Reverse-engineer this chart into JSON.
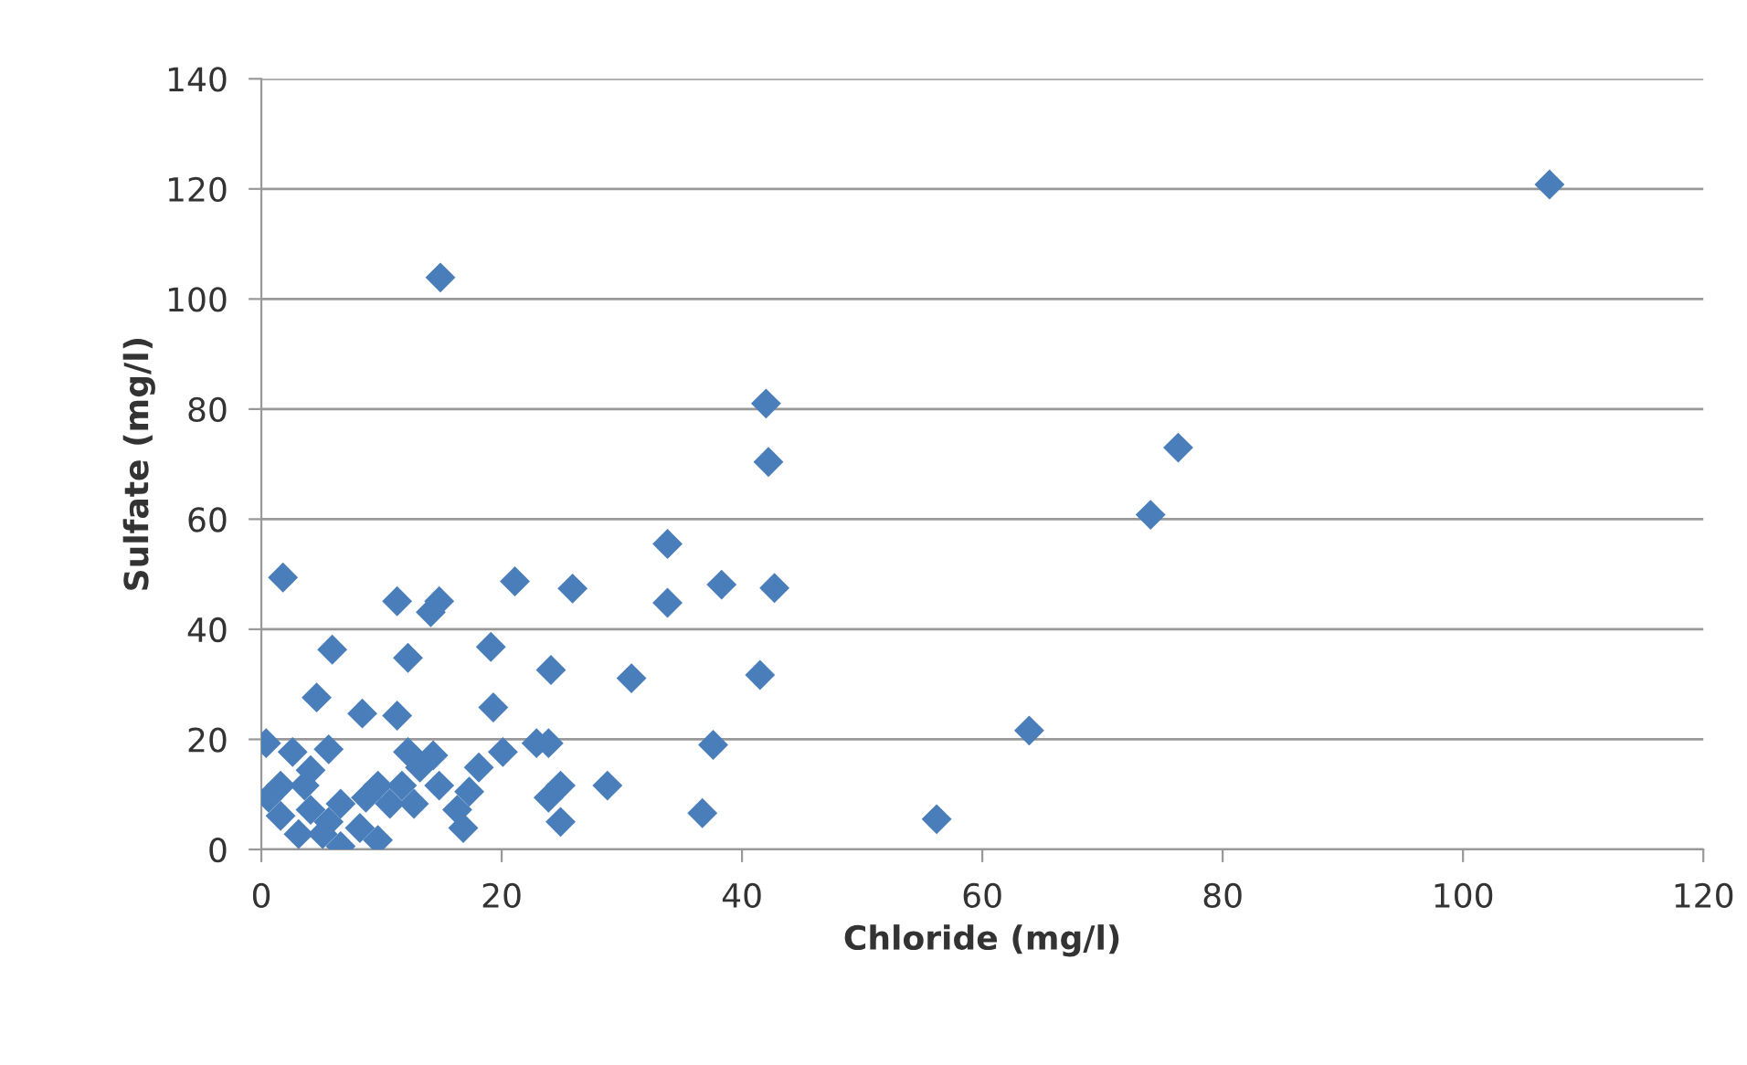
{
  "chart_data": {
    "type": "scatter",
    "xlabel": "Chloride (mg/l)",
    "ylabel": "Sulfate (mg/l)",
    "xlim": [
      0,
      120
    ],
    "ylim": [
      0,
      140
    ],
    "xticks": [
      0,
      20,
      40,
      60,
      80,
      100,
      120
    ],
    "yticks": [
      0,
      20,
      40,
      60,
      80,
      100,
      120,
      140
    ],
    "grid": "y",
    "marker": "diamond",
    "legend": false,
    "series": [
      {
        "color": "#4a7ebb",
        "x": [
          107.2,
          14.9,
          42.0,
          42.2,
          76.3,
          74.0,
          33.8,
          25.9,
          33.8,
          38.3,
          42.7,
          24.1,
          30.8,
          41.5,
          23.9,
          37.6,
          63.9,
          24.9,
          28.8,
          24.9,
          36.7,
          56.2,
          1.8,
          11.3,
          14.8,
          14.1,
          21.1,
          5.9,
          12.2,
          19.1,
          4.6,
          8.4,
          11.3,
          19.3,
          22.9,
          0.4,
          2.6,
          5.6,
          12.2,
          14.3,
          20.1,
          18.1,
          13.2,
          4.1,
          1.6,
          0.6,
          3.6,
          9.7,
          11.7,
          14.8,
          17.3,
          23.9,
          1.6,
          4.1,
          6.6,
          8.7,
          10.7,
          12.7,
          3.1,
          5.6,
          6.6,
          8.2,
          9.7,
          16.8,
          16.3,
          5.1
        ],
        "values": [
          120.8,
          103.9,
          81.0,
          70.4,
          73.0,
          60.8,
          55.5,
          47.4,
          44.8,
          48.1,
          47.5,
          32.6,
          31.1,
          31.7,
          19.3,
          19.0,
          21.6,
          11.6,
          11.6,
          5.0,
          6.6,
          5.5,
          49.4,
          45.1,
          45.1,
          43.1,
          48.7,
          36.3,
          34.8,
          36.8,
          27.6,
          24.7,
          24.3,
          25.8,
          19.3,
          19.3,
          17.7,
          18.2,
          17.7,
          17.1,
          17.7,
          14.9,
          14.9,
          14.4,
          11.6,
          9.4,
          11.6,
          11.6,
          11.6,
          11.6,
          10.5,
          9.4,
          6.1,
          7.2,
          8.3,
          9.4,
          8.3,
          8.3,
          2.8,
          5.0,
          0.6,
          3.9,
          1.7,
          3.9,
          7.2,
          2.8
        ]
      }
    ]
  }
}
